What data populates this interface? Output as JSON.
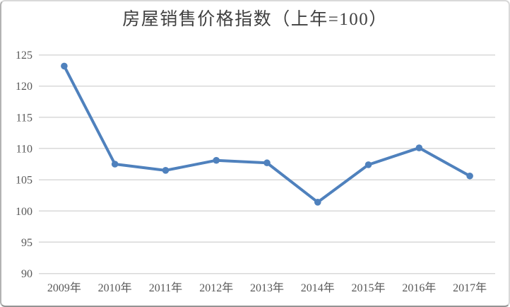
{
  "chart_data": {
    "type": "line",
    "title": "房屋销售价格指数（上年=100）",
    "categories": [
      "2009年",
      "2010年",
      "2011年",
      "2012年",
      "2013年",
      "2014年",
      "2015年",
      "2016年",
      "2017年"
    ],
    "series": [
      {
        "name": "房屋销售价格指数",
        "values": [
          123.2,
          107.5,
          106.5,
          108.1,
          107.7,
          101.4,
          107.4,
          110.1,
          105.6
        ]
      }
    ],
    "xlabel": "",
    "ylabel": "",
    "ylim": [
      90,
      125
    ],
    "y_ticks": [
      90,
      95,
      100,
      105,
      110,
      115,
      120,
      125
    ],
    "y_tick_labels": [
      "90",
      "95",
      "100",
      "105",
      "110",
      "115",
      "120",
      "125"
    ],
    "grid": true,
    "legend_position": "none",
    "marker": "circle",
    "colors": {
      "line": "#4F81BD",
      "marker": "#4F81BD",
      "grid": "#D9D9D9",
      "tick_text": "#595959",
      "title_text": "#404040",
      "background": "#FFFFFF"
    }
  }
}
